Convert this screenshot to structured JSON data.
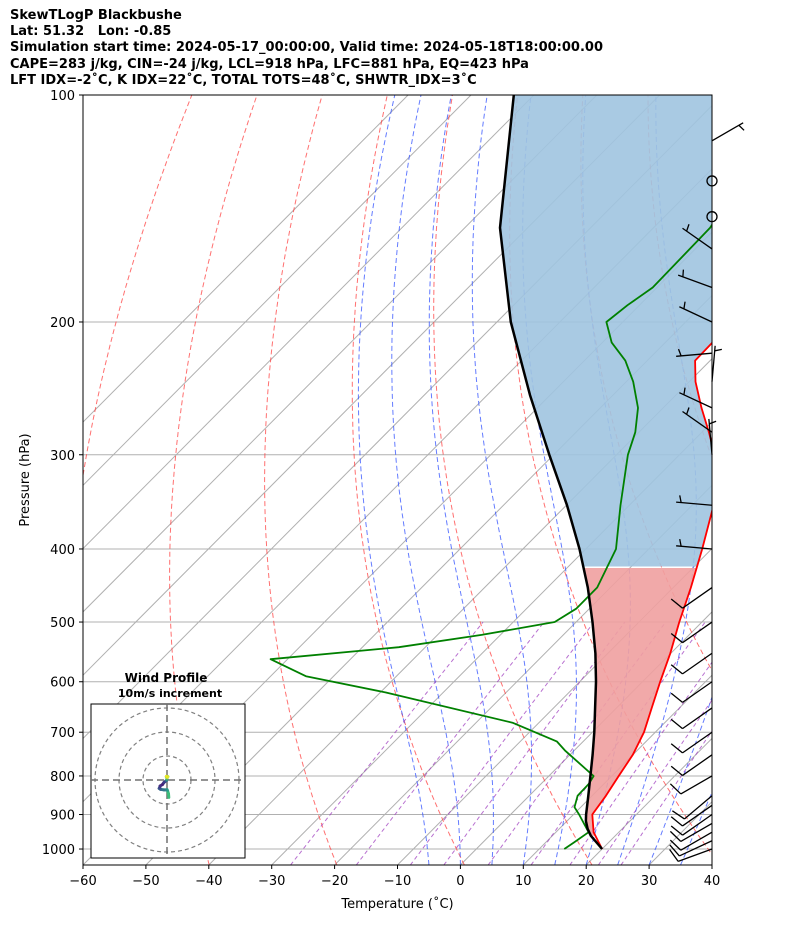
{
  "header": {
    "lines": [
      "SkewTLogP Blackbushe",
      "Lat: 51.32   Lon: -0.85",
      "Simulation start time: 2024-05-17_00:00:00, Valid time: 2024-05-18T18:00:00.00",
      "CAPE=283 j/kg, CIN=-24 j/kg, LCL=918 hPa, LFC=881 hPa, EQ=423 hPa",
      "LFT IDX=-2˚C, K IDX=22˚C, TOTAL TOTS=48˚C, SHWTR_IDX=3˚C"
    ]
  },
  "chart_data": {
    "type": "skew-t log-p",
    "xlabel": "Temperature (˚C)",
    "ylabel": "Pressure (hPa)",
    "xlim": [
      -60,
      40
    ],
    "ylim": [
      1050,
      100
    ],
    "x_ticks": [
      -60,
      -50,
      -40,
      -30,
      -20,
      -10,
      0,
      10,
      20,
      30,
      40
    ],
    "y_ticks": [
      100,
      200,
      300,
      400,
      500,
      600,
      700,
      800,
      900,
      1000
    ],
    "grid": true,
    "series": {
      "temperature": {
        "color": "#ff0000",
        "points": [
          [
            1000,
            20.0
          ],
          [
            950,
            16.0
          ],
          [
            900,
            13.0
          ],
          [
            850,
            12.2
          ],
          [
            800,
            11.1
          ],
          [
            750,
            10.0
          ],
          [
            700,
            8.2
          ],
          [
            650,
            5.6
          ],
          [
            600,
            2.8
          ],
          [
            550,
            -0.1
          ],
          [
            500,
            -3.6
          ],
          [
            450,
            -7.2
          ],
          [
            400,
            -11.5
          ],
          [
            350,
            -16.6
          ],
          [
            300,
            -24.4
          ],
          [
            280,
            -28.9
          ],
          [
            260,
            -33.9
          ],
          [
            240,
            -39.0
          ],
          [
            225,
            -42.4
          ],
          [
            213,
            -42.5
          ],
          [
            200,
            -44.4
          ],
          [
            185,
            -46.9
          ],
          [
            170,
            -49.6
          ],
          [
            150,
            -54.8
          ],
          [
            130,
            -60.2
          ],
          [
            115,
            -64.9
          ],
          [
            100,
            -70.9
          ]
        ]
      },
      "dewpoint": {
        "color": "#008000",
        "points": [
          [
            1000,
            14.0
          ],
          [
            980,
            14.5
          ],
          [
            950,
            15.2
          ],
          [
            900,
            10.9
          ],
          [
            880,
            9.0
          ],
          [
            850,
            7.7
          ],
          [
            820,
            7.6
          ],
          [
            800,
            7.1
          ],
          [
            740,
            -1.5
          ],
          [
            720,
            -4.2
          ],
          [
            680,
            -14.2
          ],
          [
            620,
            -39.1
          ],
          [
            590,
            -54.4
          ],
          [
            560,
            -62.7
          ],
          [
            540,
            -44.2
          ],
          [
            520,
            -33.0
          ],
          [
            500,
            -23.4
          ],
          [
            480,
            -22.1
          ],
          [
            450,
            -22.1
          ],
          [
            400,
            -25.2
          ],
          [
            350,
            -31.4
          ],
          [
            300,
            -38.2
          ],
          [
            280,
            -40.6
          ],
          [
            260,
            -44.0
          ],
          [
            240,
            -48.9
          ],
          [
            225,
            -53.5
          ],
          [
            213,
            -58.5
          ],
          [
            200,
            -62.6
          ],
          [
            190,
            -61.9
          ],
          [
            180,
            -60.7
          ],
          [
            150,
            -61.0
          ],
          [
            120,
            -65.0
          ],
          [
            100,
            -72.1
          ]
        ]
      },
      "parcel": {
        "color": "#000000",
        "points": [
          [
            1000,
            20.0
          ],
          [
            960,
            16.1
          ],
          [
            940,
            14.5
          ],
          [
            918,
            13.0
          ],
          [
            900,
            12.0
          ],
          [
            850,
            9.4
          ],
          [
            800,
            6.6
          ],
          [
            750,
            3.6
          ],
          [
            700,
            0.3
          ],
          [
            650,
            -3.4
          ],
          [
            600,
            -7.4
          ],
          [
            550,
            -12.0
          ],
          [
            500,
            -17.4
          ],
          [
            450,
            -23.6
          ],
          [
            400,
            -31.0
          ],
          [
            350,
            -39.9
          ],
          [
            300,
            -50.7
          ],
          [
            250,
            -63.2
          ],
          [
            200,
            -77.8
          ],
          [
            150,
            -94.4
          ],
          [
            100,
            -113.2
          ]
        ]
      },
      "cape_fill": {
        "color": "#f0a0a0",
        "label": "positive area"
      },
      "cin_fill": {
        "color": "#a0c4e0",
        "label": "negative area"
      }
    },
    "reference_lines": {
      "dry_adiabats_theta_K": [
        210,
        230,
        250,
        270,
        290,
        310,
        330,
        350,
        370,
        390,
        410,
        430
      ],
      "moist_adiabats_surface_C": [
        -5,
        0,
        5,
        10,
        15,
        20,
        25,
        30,
        35
      ],
      "mixing_ratio_gkg": [
        0.4,
        1,
        2,
        3,
        5,
        8,
        12,
        16,
        20
      ],
      "isotherms_C": [
        -130,
        -120,
        -110,
        -100,
        -90,
        -80,
        -70,
        -60,
        -50,
        -40,
        -30,
        -20,
        -10,
        0,
        10,
        20,
        30,
        40
      ]
    },
    "wind_barbs": [
      {
        "p": 1000,
        "dir": 250,
        "spd_kt": 10
      },
      {
        "p": 975,
        "dir": 245,
        "spd_kt": 10
      },
      {
        "p": 950,
        "dir": 240,
        "spd_kt": 10
      },
      {
        "p": 925,
        "dir": 240,
        "spd_kt": 10
      },
      {
        "p": 900,
        "dir": 235,
        "spd_kt": 10
      },
      {
        "p": 875,
        "dir": 235,
        "spd_kt": 10
      },
      {
        "p": 850,
        "dir": 230,
        "spd_kt": 10
      },
      {
        "p": 800,
        "dir": 240,
        "spd_kt": 10
      },
      {
        "p": 750,
        "dir": 235,
        "spd_kt": 10
      },
      {
        "p": 700,
        "dir": 235,
        "spd_kt": 10
      },
      {
        "p": 650,
        "dir": 235,
        "spd_kt": 10
      },
      {
        "p": 600,
        "dir": 235,
        "spd_kt": 10
      },
      {
        "p": 550,
        "dir": 235,
        "spd_kt": 10
      },
      {
        "p": 500,
        "dir": 235,
        "spd_kt": 10
      },
      {
        "p": 450,
        "dir": 235,
        "spd_kt": 10
      },
      {
        "p": 400,
        "dir": 275,
        "spd_kt": 5
      },
      {
        "p": 350,
        "dir": 275,
        "spd_kt": 5
      },
      {
        "p": 300,
        "dir": 355,
        "spd_kt": 5
      },
      {
        "p": 280,
        "dir": 305,
        "spd_kt": 5
      },
      {
        "p": 260,
        "dir": 295,
        "spd_kt": 5
      },
      {
        "p": 240,
        "dir": 5,
        "spd_kt": 5
      },
      {
        "p": 220,
        "dir": 265,
        "spd_kt": 5
      },
      {
        "p": 200,
        "dir": 295,
        "spd_kt": 5
      },
      {
        "p": 180,
        "dir": 290,
        "spd_kt": 5
      },
      {
        "p": 160,
        "dir": 305,
        "spd_kt": 5
      },
      {
        "p": 145,
        "dir": 0,
        "spd_kt": 0
      },
      {
        "p": 130,
        "dir": 0,
        "spd_kt": 0
      },
      {
        "p": 115,
        "dir": 60,
        "spd_kt": 5
      }
    ],
    "hodograph": {
      "title": "Wind Profile",
      "subtitle": "10m/s increment",
      "ring_spacing_ms": 10,
      "points": [
        [
          0.6,
          -5.8
        ],
        [
          0.5,
          -4.6
        ],
        [
          0.2,
          -3.6
        ],
        [
          0.0,
          -3.2
        ],
        [
          -0.4,
          -3.3
        ],
        [
          -1.0,
          -3.3
        ],
        [
          -2.2,
          -3.1
        ],
        [
          -2.6,
          -2.8
        ],
        [
          -2.4,
          -2.4
        ],
        [
          -2.3,
          -2.0
        ],
        [
          -1.5,
          -1.5
        ],
        [
          -1.0,
          -0.8
        ],
        [
          -0.2,
          -0.2
        ],
        [
          0.0,
          0.2
        ],
        [
          0.0,
          0.6
        ],
        [
          -0.2,
          1.0
        ],
        [
          0.3,
          1.1
        ],
        [
          -0.2,
          1.2
        ],
        [
          0.1,
          0.9
        ]
      ]
    }
  }
}
